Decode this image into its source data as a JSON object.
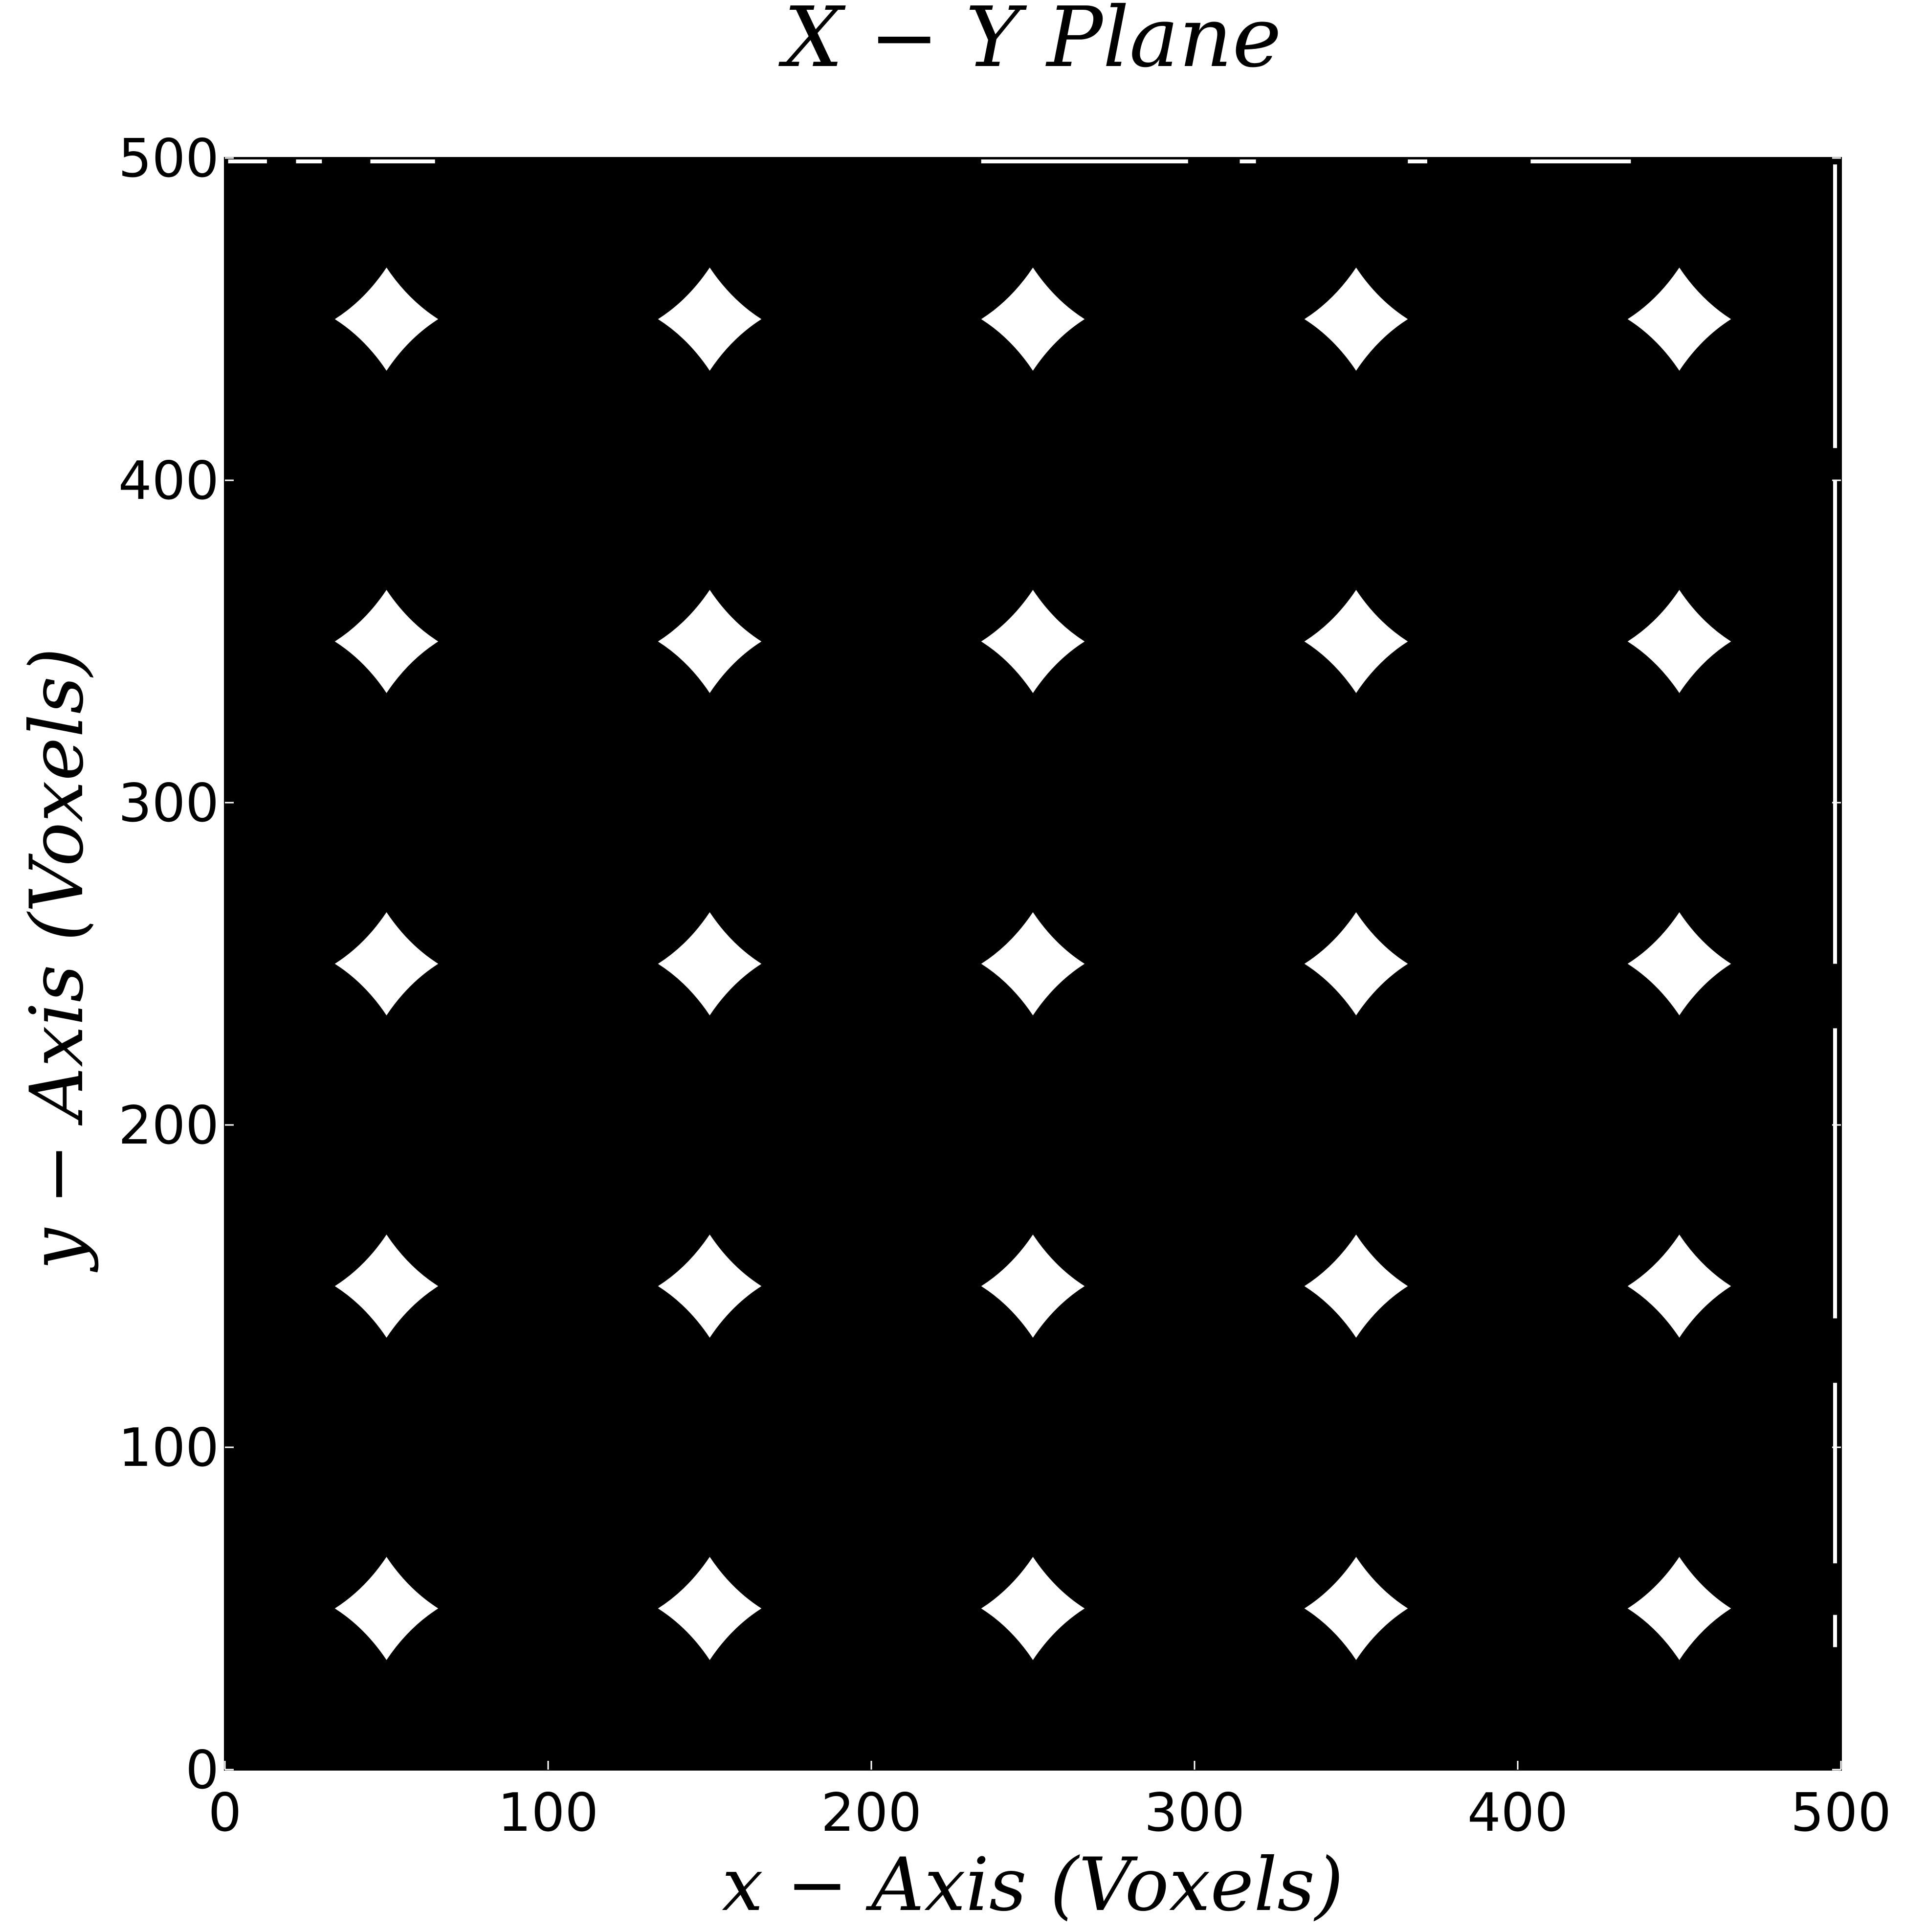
{
  "chart_data": {
    "type": "heatmap",
    "title": "X − Y Plane",
    "xlabel": "x − Axis (Voxels)",
    "ylabel": "y − Axis (Voxels)",
    "xlim": [
      0,
      500
    ],
    "ylim": [
      0,
      500
    ],
    "xticks": [
      0,
      100,
      200,
      300,
      400,
      500
    ],
    "yticks": [
      0,
      100,
      200,
      300,
      400,
      500
    ],
    "grid": false,
    "background_color": "#000000",
    "feature_color": "#ffffff",
    "feature_shape": "concave-diamond",
    "feature_half_width": 16,
    "features": [
      {
        "x": 50,
        "y": 50
      },
      {
        "x": 150,
        "y": 50
      },
      {
        "x": 250,
        "y": 50
      },
      {
        "x": 350,
        "y": 50
      },
      {
        "x": 450,
        "y": 50
      },
      {
        "x": 50,
        "y": 150
      },
      {
        "x": 150,
        "y": 150
      },
      {
        "x": 250,
        "y": 150
      },
      {
        "x": 350,
        "y": 150
      },
      {
        "x": 450,
        "y": 150
      },
      {
        "x": 50,
        "y": 250
      },
      {
        "x": 150,
        "y": 250
      },
      {
        "x": 250,
        "y": 250
      },
      {
        "x": 350,
        "y": 250
      },
      {
        "x": 450,
        "y": 250
      },
      {
        "x": 50,
        "y": 350
      },
      {
        "x": 150,
        "y": 350
      },
      {
        "x": 250,
        "y": 350
      },
      {
        "x": 350,
        "y": 350
      },
      {
        "x": 450,
        "y": 350
      },
      {
        "x": 50,
        "y": 450
      },
      {
        "x": 150,
        "y": 450
      },
      {
        "x": 250,
        "y": 450
      },
      {
        "x": 350,
        "y": 450
      },
      {
        "x": 450,
        "y": 450
      }
    ],
    "top_edge_segments": [
      [
        1,
        13
      ],
      [
        22,
        30
      ],
      [
        45,
        65
      ],
      [
        234,
        298
      ],
      [
        314,
        319
      ],
      [
        366,
        372
      ],
      [
        404,
        435
      ]
    ],
    "right_edge_segments": [
      [
        38,
        48
      ],
      [
        64,
        120
      ],
      [
        140,
        230
      ],
      [
        250,
        400
      ],
      [
        410,
        498
      ]
    ]
  }
}
